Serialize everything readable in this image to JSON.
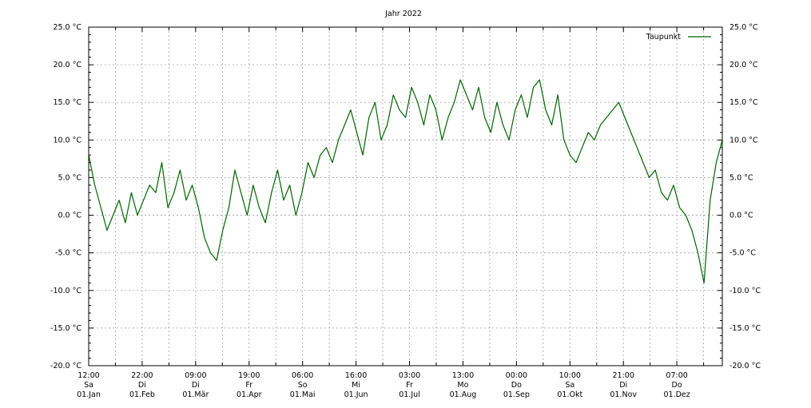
{
  "chart_data": {
    "type": "line",
    "title": "Jahr 2022",
    "xlabel": "",
    "ylabel": "",
    "ylim": [
      -20,
      25
    ],
    "grid": true,
    "legend_position": "top-right",
    "y_ticks": [
      "25.0 °C",
      "20.0 °C",
      "15.0 °C",
      "10.0 °C",
      "5.0 °C",
      "0.0 °C",
      "-5.0 °C",
      "-10.0 °C",
      "-15.0 °C",
      "-20.0 °C"
    ],
    "x_ticks": [
      {
        "time": "12:00",
        "day": "Sa",
        "date": "01.Jan"
      },
      {
        "time": "22:00",
        "day": "Di",
        "date": "01.Feb"
      },
      {
        "time": "09:00",
        "day": "Di",
        "date": "01.Mär"
      },
      {
        "time": "19:00",
        "day": "Fr",
        "date": "01.Apr"
      },
      {
        "time": "06:00",
        "day": "So",
        "date": "01.Mai"
      },
      {
        "time": "16:00",
        "day": "Mi",
        "date": "01.Jun"
      },
      {
        "time": "03:00",
        "day": "Fr",
        "date": "01.Jul"
      },
      {
        "time": "13:00",
        "day": "Mo",
        "date": "01.Aug"
      },
      {
        "time": "00:00",
        "day": "Do",
        "date": "01.Sep"
      },
      {
        "time": "10:00",
        "day": "Sa",
        "date": "01.Okt"
      },
      {
        "time": "21:00",
        "day": "Di",
        "date": "01.Nov"
      },
      {
        "time": "07:00",
        "day": "Do",
        "date": "01.Dez"
      }
    ],
    "series": [
      {
        "name": "Taupunkt",
        "color": "#006400",
        "x": [
          "01.Jan",
          "04.Jan",
          "08.Jan",
          "11.Jan",
          "15.Jan",
          "18.Jan",
          "22.Jan",
          "25.Jan",
          "29.Jan",
          "01.Feb",
          "04.Feb",
          "08.Feb",
          "11.Feb",
          "15.Feb",
          "18.Feb",
          "21.Feb",
          "25.Feb",
          "28.Feb",
          "04.Mär",
          "08.Mär",
          "11.Mär",
          "15.Mär",
          "18.Mär",
          "22.Mär",
          "25.Mär",
          "29.Mär",
          "01.Apr",
          "05.Apr",
          "08.Apr",
          "12.Apr",
          "15.Apr",
          "19.Apr",
          "22.Apr",
          "26.Apr",
          "29.Apr",
          "03.Mai",
          "06.Mai",
          "10.Mai",
          "13.Mai",
          "17.Mai",
          "20.Mai",
          "24.Mai",
          "27.Mai",
          "31.Mai",
          "03.Jun",
          "07.Jun",
          "10.Jun",
          "14.Jun",
          "17.Jun",
          "21.Jun",
          "24.Jun",
          "28.Jun",
          "01.Jul",
          "05.Jul",
          "08.Jul",
          "12.Jul",
          "15.Jul",
          "19.Jul",
          "22.Jul",
          "26.Jul",
          "29.Jul",
          "02.Aug",
          "05.Aug",
          "09.Aug",
          "12.Aug",
          "16.Aug",
          "19.Aug",
          "23.Aug",
          "26.Aug",
          "30.Aug",
          "02.Sep",
          "06.Sep",
          "09.Sep",
          "13.Sep",
          "16.Sep",
          "20.Sep",
          "23.Sep",
          "27.Sep",
          "30.Sep",
          "04.Okt",
          "07.Okt",
          "11.Okt",
          "14.Okt",
          "18.Okt",
          "21.Okt",
          "25.Okt",
          "28.Okt",
          "01.Nov",
          "04.Nov",
          "08.Nov",
          "11.Nov",
          "15.Nov",
          "18.Nov",
          "22.Nov",
          "25.Nov",
          "29.Nov",
          "02.Dez",
          "06.Dez",
          "09.Dez",
          "13.Dez",
          "16.Dez",
          "20.Dez",
          "23.Dez",
          "27.Dez",
          "31.Dez"
        ],
        "values": [
          8,
          4,
          1,
          -2,
          0,
          2,
          -1,
          3,
          0,
          2,
          4,
          3,
          7,
          1,
          3,
          6,
          2,
          4,
          1,
          -3,
          -5,
          -6,
          -2,
          1,
          6,
          3,
          0,
          4,
          1,
          -1,
          3,
          6,
          2,
          4,
          0,
          3,
          7,
          5,
          8,
          9,
          7,
          10,
          12,
          14,
          11,
          8,
          13,
          15,
          10,
          12,
          16,
          14,
          13,
          17,
          15,
          12,
          16,
          14,
          10,
          13,
          15,
          18,
          16,
          14,
          17,
          13,
          11,
          15,
          12,
          10,
          14,
          16,
          13,
          17,
          18,
          14,
          12,
          16,
          10,
          8,
          7,
          9,
          11,
          10,
          12,
          13,
          14,
          15,
          13,
          11,
          9,
          7,
          5,
          6,
          3,
          2,
          4,
          1,
          0,
          -2,
          -5,
          -9,
          2,
          7,
          10
        ]
      }
    ]
  }
}
